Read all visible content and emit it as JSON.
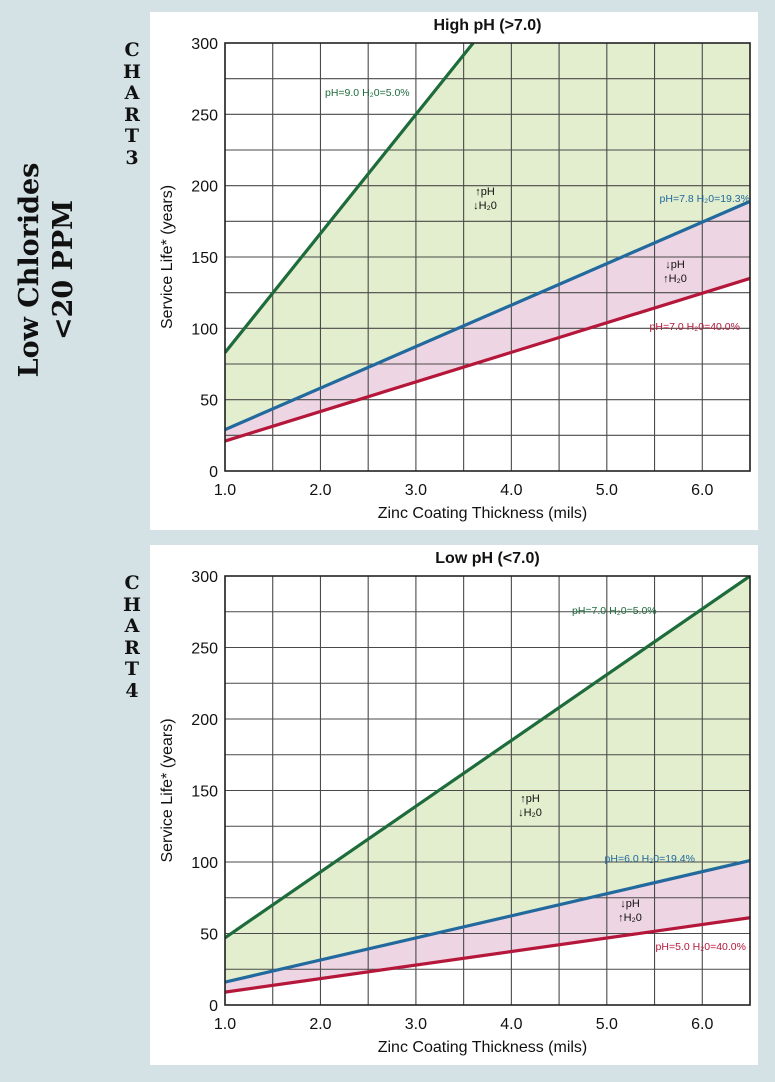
{
  "side_title": {
    "line1": "Low Chlorides",
    "line2": "<20 PPM"
  },
  "chart_data": [
    {
      "label": "CHART 3",
      "type": "line",
      "title": "High pH (>7.0)",
      "xlabel": "Zinc Coating Thickness (mils)",
      "ylabel": "Service Life* (years)",
      "xlim": [
        1.0,
        6.5
      ],
      "ylim": [
        0,
        300
      ],
      "xticks": [
        "1.0",
        "2.0",
        "3.0",
        "4.0",
        "5.0",
        "6.0"
      ],
      "yticks": [
        "0",
        "50",
        "100",
        "150",
        "200",
        "250",
        "300"
      ],
      "grid": true,
      "series": [
        {
          "label_text": "pH=9.0 H₂0=5.0%",
          "color": "#1e6b3c",
          "x": [
            1.0,
            3.6
          ],
          "y": [
            83,
            300
          ]
        },
        {
          "label_text": "pH=7.8 H₂0=19.3%",
          "color": "#22699e",
          "x": [
            1.0,
            6.5
          ],
          "y": [
            29,
            189
          ]
        },
        {
          "label_text": "pH=7.0 H₂0=40.0%",
          "color": "#b5173a",
          "x": [
            1.0,
            6.5
          ],
          "y": [
            21,
            135
          ]
        }
      ],
      "annotations": {
        "upper_region": [
          "↑pH",
          "↓H₂0"
        ],
        "lower_region": [
          "↓pH",
          "↑H₂0"
        ]
      },
      "fill_colors": {
        "upper": "#e2eecd",
        "lower": "#eed5e3"
      }
    },
    {
      "label": "CHART 4",
      "type": "line",
      "title": "Low pH (<7.0)",
      "xlabel": "Zinc Coating Thickness (mils)",
      "ylabel": "Service Life* (years)",
      "xlim": [
        1.0,
        6.5
      ],
      "ylim": [
        0,
        300
      ],
      "xticks": [
        "1.0",
        "2.0",
        "3.0",
        "4.0",
        "5.0",
        "6.0"
      ],
      "yticks": [
        "0",
        "50",
        "100",
        "150",
        "200",
        "250",
        "300"
      ],
      "grid": true,
      "series": [
        {
          "label_text": "pH=7.0 H₂0=5.0%",
          "color": "#1e6b3c",
          "x": [
            1.0,
            6.5
          ],
          "y": [
            47,
            300
          ]
        },
        {
          "label_text": "pH=6.0 H₂0=19.4%",
          "color": "#22699e",
          "x": [
            1.0,
            6.5
          ],
          "y": [
            16,
            101
          ]
        },
        {
          "label_text": "pH=5.0 H₂0=40.0%",
          "color": "#b5173a",
          "x": [
            1.0,
            6.5
          ],
          "y": [
            9,
            61
          ]
        }
      ],
      "annotations": {
        "upper_region": [
          "↑pH",
          "↓H₂0"
        ],
        "lower_region": [
          "↓pH",
          "↑H₂0"
        ]
      },
      "fill_colors": {
        "upper": "#e2eecd",
        "lower": "#eed5e3"
      }
    }
  ]
}
